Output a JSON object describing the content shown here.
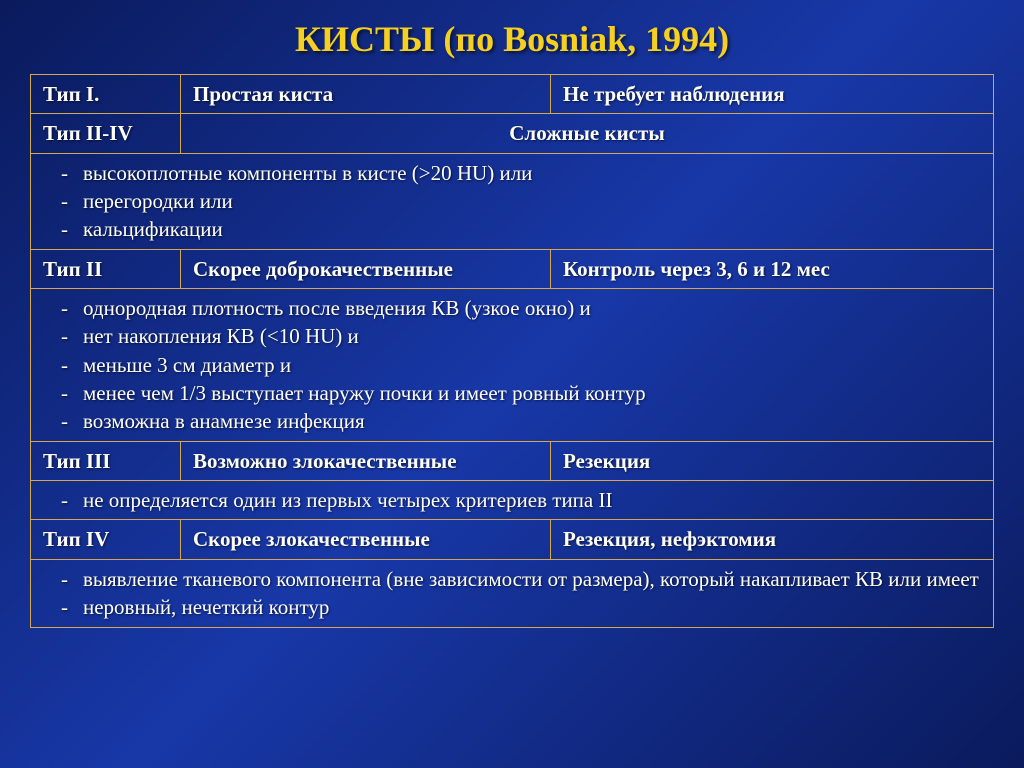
{
  "title": "КИСТЫ (по Bosniak, 1994)",
  "colors": {
    "title_color": "#f5d020",
    "border_color": "#d4a850",
    "text_color": "#ffffff",
    "bg_gradient_start": "#0a1a5c",
    "bg_gradient_mid": "#1838a8"
  },
  "row1": {
    "c1": "Тип I.",
    "c2": "Простая киста",
    "c3": "Не требует наблюдения"
  },
  "row2": {
    "c1": "Тип II-IV",
    "c23": "Сложные кисты"
  },
  "crit_a": [
    "высокоплотные компоненты в кисте (>20 HU) или",
    "перегородки или",
    "кальцификации"
  ],
  "row3": {
    "c1": "Тип II",
    "c2": "Скорее доброкачественные",
    "c3": "Контроль через 3, 6 и 12 мес"
  },
  "crit_b": [
    "однородная плотность после введения КВ (узкое окно) и",
    "нет накопления КВ (<10 HU) и",
    "меньше 3 см диаметр и",
    "менее чем 1/3 выступает наружу почки и имеет ровный контур",
    "возможна в анамнезе инфекция"
  ],
  "row4": {
    "c1": "Тип III",
    "c2": "Возможно злокачественные",
    "c3": "Резекция"
  },
  "crit_c": [
    "не определяется один из первых четырех критериев типа II"
  ],
  "row5": {
    "c1": "Тип IV",
    "c2": "Скорее злокачественные",
    "c3": "Резекция, нефэктомия"
  },
  "crit_d": [
    "выявление тканевого компонента (вне зависимости от размера), который накапливает КВ или имеет",
    "неровный, нечеткий контур"
  ]
}
